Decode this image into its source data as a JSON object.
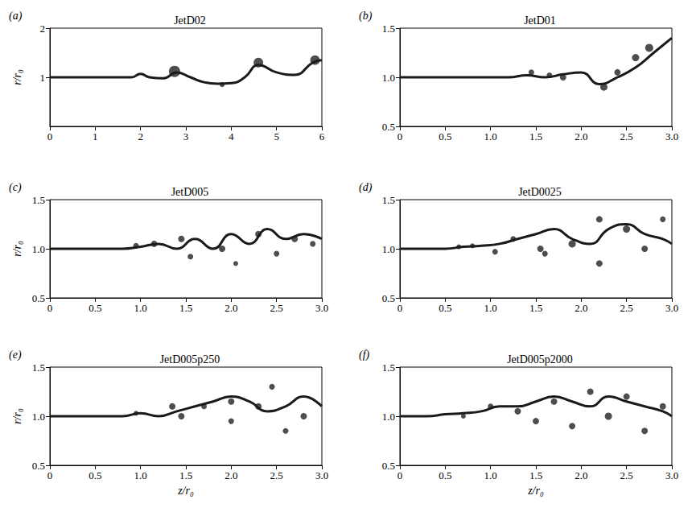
{
  "chart_data": [
    {
      "panel": "(a)",
      "title": "JetD02",
      "type": "line",
      "ylabel": "r/r₀",
      "grid": false,
      "xlim": [
        0,
        6
      ],
      "xticks": [
        0,
        1,
        2,
        3,
        4,
        5,
        6
      ],
      "ylim": [
        0,
        2
      ],
      "yticks": [
        1,
        2
      ],
      "series": [
        {
          "type": "line",
          "color": "#1a1a1a",
          "x": [
            0,
            0.5,
            1,
            1.5,
            1.8,
            2.0,
            2.2,
            2.5,
            2.8,
            3.1,
            3.4,
            3.7,
            4.0,
            4.3,
            4.6,
            5.0,
            5.4,
            5.8,
            6.0
          ],
          "values": [
            1,
            1,
            1,
            1,
            1.0,
            1.07,
            1.0,
            0.98,
            1.1,
            1.0,
            0.9,
            0.87,
            0.88,
            1.0,
            1.25,
            1.1,
            1.05,
            1.3,
            1.35
          ]
        },
        {
          "type": "scatter",
          "color": "#222222",
          "marker": "circle",
          "x": [
            2.75,
            4.6,
            5.85,
            3.8
          ],
          "values": [
            1.12,
            1.3,
            1.35,
            0.85
          ],
          "size": [
            14,
            12,
            12,
            6
          ]
        }
      ]
    },
    {
      "panel": "(b)",
      "title": "JetD01",
      "type": "line",
      "grid": false,
      "xlim": [
        0,
        3
      ],
      "xticks": [
        0,
        {
          "value": 0.5,
          "label": "0.5"
        },
        {
          "value": 1,
          "label": "1.0"
        },
        {
          "value": 1.5,
          "label": "1.5"
        },
        {
          "value": 2,
          "label": "2.0"
        },
        {
          "value": 2.5,
          "label": "2.5"
        },
        {
          "value": 3,
          "label": "3.0"
        }
      ],
      "ylim": [
        0.5,
        1.5
      ],
      "yticks": [
        {
          "value": 0.5,
          "label": "0.5"
        },
        {
          "value": 1,
          "label": "1.0"
        },
        {
          "value": 1.5,
          "label": "1.5"
        }
      ],
      "series": [
        {
          "type": "line",
          "color": "#1a1a1a",
          "x": [
            0,
            0.5,
            1,
            1.2,
            1.4,
            1.6,
            1.8,
            2.0,
            2.2,
            2.4,
            2.6,
            2.8,
            3.0
          ],
          "values": [
            1,
            1,
            1,
            1,
            1.02,
            1.0,
            1.03,
            1.05,
            0.93,
            1.0,
            1.1,
            1.25,
            1.4
          ]
        },
        {
          "type": "scatter",
          "color": "#222222",
          "marker": "circle",
          "x": [
            1.45,
            1.65,
            1.8,
            2.25,
            2.4,
            2.6,
            2.75
          ],
          "values": [
            1.05,
            1.02,
            1.0,
            0.9,
            1.05,
            1.2,
            1.3
          ],
          "size": [
            7,
            7,
            8,
            9,
            8,
            9,
            10
          ]
        }
      ]
    },
    {
      "panel": "(c)",
      "title": "JetD005",
      "type": "line",
      "ylabel": "r/r₀",
      "grid": false,
      "xlim": [
        0,
        3
      ],
      "xticks": [
        0,
        {
          "value": 0.5,
          "label": "0.5"
        },
        {
          "value": 1,
          "label": "1.0"
        },
        {
          "value": 1.5,
          "label": "1.5"
        },
        {
          "value": 2,
          "label": "2.0"
        },
        {
          "value": 2.5,
          "label": "2.5"
        },
        {
          "value": 3,
          "label": "3.0"
        }
      ],
      "ylim": [
        0.5,
        1.5
      ],
      "yticks": [
        {
          "value": 0.5,
          "label": "0.5"
        },
        {
          "value": 1,
          "label": "1.0"
        },
        {
          "value": 1.5,
          "label": "1.5"
        }
      ],
      "series": [
        {
          "type": "line",
          "color": "#1a1a1a",
          "x": [
            0,
            0.5,
            0.8,
            1.0,
            1.2,
            1.4,
            1.6,
            1.8,
            2.0,
            2.2,
            2.4,
            2.6,
            2.8,
            3.0
          ],
          "values": [
            1,
            1,
            1,
            1.02,
            1.05,
            1.0,
            1.1,
            1.0,
            1.15,
            1.05,
            1.2,
            1.1,
            1.15,
            1.1
          ]
        },
        {
          "type": "scatter",
          "color": "#222222",
          "marker": "circle",
          "x": [
            0.95,
            1.15,
            1.45,
            1.55,
            1.9,
            2.05,
            2.3,
            2.5,
            2.7,
            2.9
          ],
          "values": [
            1.03,
            1.05,
            1.1,
            0.92,
            1.0,
            0.85,
            1.15,
            0.95,
            1.1,
            1.05
          ],
          "size": [
            7,
            8,
            8,
            7,
            8,
            6,
            8,
            7,
            8,
            7
          ]
        }
      ]
    },
    {
      "panel": "(d)",
      "title": "JetD0025",
      "type": "line",
      "grid": false,
      "xlim": [
        0,
        3
      ],
      "xticks": [
        0,
        {
          "value": 0.5,
          "label": "0.5"
        },
        {
          "value": 1,
          "label": "1.0"
        },
        {
          "value": 1.5,
          "label": "1.5"
        },
        {
          "value": 2,
          "label": "2.0"
        },
        {
          "value": 2.5,
          "label": "2.5"
        },
        {
          "value": 3,
          "label": "3.0"
        }
      ],
      "ylim": [
        0.5,
        1.5
      ],
      "yticks": [
        {
          "value": 0.5,
          "label": "0.5"
        },
        {
          "value": 1,
          "label": "1.0"
        },
        {
          "value": 1.5,
          "label": "1.5"
        }
      ],
      "series": [
        {
          "type": "line",
          "color": "#1a1a1a",
          "x": [
            0,
            0.5,
            0.7,
            0.9,
            1.1,
            1.3,
            1.5,
            1.7,
            1.9,
            2.1,
            2.3,
            2.5,
            2.7,
            2.9,
            3.0
          ],
          "values": [
            1,
            1,
            1.02,
            1.03,
            1.05,
            1.1,
            1.15,
            1.2,
            1.1,
            1.05,
            1.2,
            1.25,
            1.15,
            1.1,
            1.05
          ]
        },
        {
          "type": "scatter",
          "color": "#222222",
          "marker": "circle",
          "x": [
            0.65,
            0.8,
            1.05,
            1.25,
            1.55,
            1.6,
            1.9,
            2.2,
            2.2,
            2.5,
            2.7,
            2.9
          ],
          "values": [
            1.02,
            1.03,
            0.97,
            1.1,
            1.0,
            0.95,
            1.05,
            0.85,
            1.3,
            1.2,
            1.0,
            1.3
          ],
          "size": [
            6,
            6,
            7,
            7,
            8,
            7,
            9,
            8,
            8,
            9,
            8,
            7
          ]
        }
      ]
    },
    {
      "panel": "(e)",
      "title": "JetD005p250",
      "type": "line",
      "xlabel": "z/r₀",
      "ylabel": "r/r₀",
      "grid": false,
      "xlim": [
        0,
        3
      ],
      "xticks": [
        0,
        {
          "value": 0.5,
          "label": "0.5"
        },
        {
          "value": 1,
          "label": "1.0"
        },
        {
          "value": 1.5,
          "label": "1.5"
        },
        {
          "value": 2,
          "label": "2.0"
        },
        {
          "value": 2.5,
          "label": "2.5"
        },
        {
          "value": 3,
          "label": "3.0"
        }
      ],
      "ylim": [
        0.5,
        1.5
      ],
      "yticks": [
        {
          "value": 0.5,
          "label": "0.5"
        },
        {
          "value": 1,
          "label": "1.0"
        },
        {
          "value": 1.5,
          "label": "1.5"
        }
      ],
      "series": [
        {
          "type": "line",
          "color": "#1a1a1a",
          "x": [
            0,
            0.5,
            0.8,
            1.0,
            1.2,
            1.4,
            1.6,
            1.8,
            2.0,
            2.2,
            2.4,
            2.6,
            2.8,
            3.0
          ],
          "values": [
            1,
            1,
            1,
            1.03,
            1.0,
            1.05,
            1.1,
            1.15,
            1.2,
            1.15,
            1.05,
            1.1,
            1.2,
            1.1
          ]
        },
        {
          "type": "scatter",
          "color": "#222222",
          "marker": "circle",
          "x": [
            0.95,
            1.35,
            1.45,
            1.7,
            2.0,
            2.0,
            2.3,
            2.45,
            2.6,
            2.8
          ],
          "values": [
            1.03,
            1.1,
            1.0,
            1.1,
            1.15,
            0.95,
            1.1,
            1.3,
            0.85,
            1.0
          ],
          "size": [
            6,
            8,
            8,
            7,
            8,
            7,
            8,
            7,
            7,
            8
          ]
        }
      ]
    },
    {
      "panel": "(f)",
      "title": "JetD005p2000",
      "type": "line",
      "xlabel": "z/r₀",
      "grid": false,
      "xlim": [
        0,
        3
      ],
      "xticks": [
        0,
        {
          "value": 0.5,
          "label": "0.5"
        },
        {
          "value": 1,
          "label": "1.0"
        },
        {
          "value": 1.5,
          "label": "1.5"
        },
        {
          "value": 2,
          "label": "2.0"
        },
        {
          "value": 2.5,
          "label": "2.5"
        },
        {
          "value": 3,
          "label": "3.0"
        }
      ],
      "ylim": [
        0.5,
        1.5
      ],
      "yticks": [
        {
          "value": 0.5,
          "label": "0.5"
        },
        {
          "value": 1,
          "label": "1.0"
        },
        {
          "value": 1.5,
          "label": "1.5"
        }
      ],
      "series": [
        {
          "type": "line",
          "color": "#1a1a1a",
          "x": [
            0,
            0.3,
            0.5,
            0.7,
            0.9,
            1.1,
            1.3,
            1.5,
            1.7,
            1.9,
            2.1,
            2.3,
            2.5,
            2.7,
            2.9,
            3.0
          ],
          "values": [
            1,
            1.0,
            1.02,
            1.03,
            1.05,
            1.1,
            1.1,
            1.15,
            1.2,
            1.15,
            1.1,
            1.2,
            1.15,
            1.1,
            1.05,
            1.0
          ]
        },
        {
          "type": "scatter",
          "color": "#222222",
          "marker": "circle",
          "x": [
            0.7,
            1.0,
            1.3,
            1.5,
            1.7,
            1.9,
            2.1,
            2.3,
            2.5,
            2.7,
            2.9
          ],
          "values": [
            1.0,
            1.1,
            1.05,
            0.95,
            1.15,
            0.9,
            1.25,
            1.0,
            1.2,
            0.85,
            1.1
          ],
          "size": [
            6,
            7,
            8,
            8,
            8,
            8,
            8,
            9,
            8,
            8,
            8
          ]
        }
      ]
    }
  ]
}
